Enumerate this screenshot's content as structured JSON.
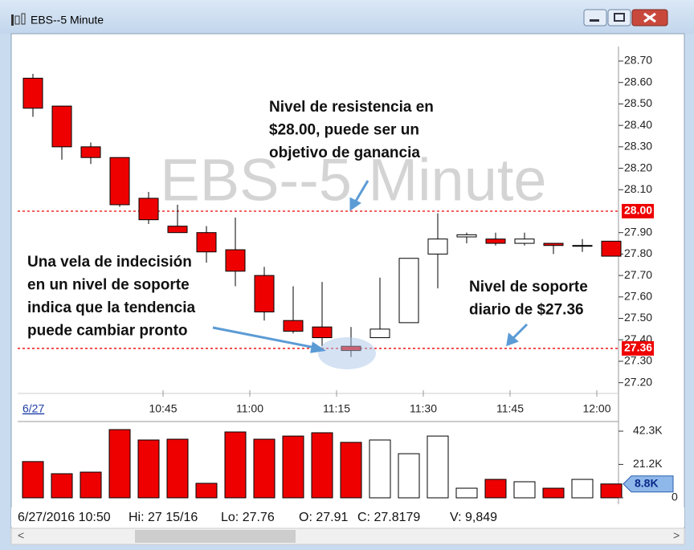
{
  "window": {
    "title": "EBS--5 Minute",
    "status": [
      "6/27/2016 10:50",
      "Hi: 27 15/16",
      "Lo: 27.76",
      "O: 27.91",
      "C: 27.8179",
      "V: 9,849"
    ]
  },
  "chart_data": {
    "type": "candlestick",
    "title": "EBS--5 Minute",
    "date_label": "6/27",
    "xticks": [
      "10:45",
      "11:00",
      "11:15",
      "11:30",
      "11:45",
      "12:00"
    ],
    "open": [
      28.62,
      28.49,
      28.3,
      28.25,
      28.06,
      27.93,
      27.9,
      27.82,
      27.7,
      27.49,
      27.46,
      27.37,
      27.41,
      27.48,
      27.8,
      27.88,
      27.87,
      27.85,
      27.85,
      27.84,
      27.86
    ],
    "high": [
      28.64,
      28.49,
      28.32,
      28.25,
      28.09,
      28.03,
      27.93,
      27.97,
      27.74,
      27.65,
      27.67,
      27.46,
      27.69,
      27.78,
      27.99,
      27.9,
      27.9,
      27.9,
      27.85,
      27.87,
      27.86
    ],
    "low": [
      28.44,
      28.24,
      28.22,
      28.02,
      27.94,
      27.9,
      27.76,
      27.65,
      27.49,
      27.43,
      27.37,
      27.32,
      27.41,
      27.48,
      27.64,
      27.85,
      27.84,
      27.84,
      27.8,
      27.81,
      27.79
    ],
    "close": [
      28.48,
      28.3,
      28.25,
      28.03,
      27.96,
      27.9,
      27.81,
      27.72,
      27.53,
      27.44,
      27.41,
      27.35,
      27.45,
      27.78,
      27.87,
      27.89,
      27.85,
      27.87,
      27.84,
      27.84,
      27.79
    ],
    "up_color": "#ffffff",
    "down_color": "#ee0000",
    "ylim": [
      27.15,
      28.76
    ],
    "yticks": [
      {
        "value": 28.7,
        "label": "28.70"
      },
      {
        "value": 28.6,
        "label": "28.60"
      },
      {
        "value": 28.5,
        "label": "28.50"
      },
      {
        "value": 28.4,
        "label": "28.40"
      },
      {
        "value": 28.3,
        "label": "28.30"
      },
      {
        "value": 28.2,
        "label": "28.20"
      },
      {
        "value": 28.1,
        "label": "28.10"
      },
      {
        "value": 27.9,
        "label": "27.90"
      },
      {
        "value": 27.8,
        "label": "27.80"
      },
      {
        "value": 27.7,
        "label": "27.70"
      },
      {
        "value": 27.6,
        "label": "27.60"
      },
      {
        "value": 27.5,
        "label": "27.50"
      },
      {
        "value": 27.4,
        "label": "27.40"
      },
      {
        "value": 27.3,
        "label": "27.30"
      },
      {
        "value": 27.2,
        "label": "27.20"
      }
    ],
    "levels": [
      {
        "value": 28.0,
        "label": "28.00"
      },
      {
        "value": 27.36,
        "label": "27.36"
      }
    ],
    "level_color": "#ee0000",
    "annotations": [
      {
        "lines": [
          "Nivel de resistencia en",
          "$28.00, puede ser un",
          "objetivo de ganancia"
        ]
      },
      {
        "lines": [
          "Una vela de indecisión",
          "en un nivel de soporte",
          "indica que la tendencia",
          "puede cambiar pronto"
        ]
      },
      {
        "lines": [
          "Nivel de soporte",
          "diario de $27.36"
        ]
      }
    ],
    "volume": {
      "values": [
        23.0,
        15.3,
        16.3,
        43.3,
        36.7,
        37.2,
        9.2,
        41.8,
        37.2,
        39.2,
        41.3,
        35.2,
        36.7,
        28.0,
        39.2,
        6.1,
        11.7,
        10.2,
        6.1,
        11.7,
        8.8
      ],
      "value_labels": [
        null,
        null,
        null,
        null,
        null,
        null,
        null,
        null,
        null,
        null,
        null,
        null,
        null,
        null,
        null,
        null,
        null,
        null,
        null,
        null,
        "8.8K"
      ],
      "ylim": [
        0,
        47.4
      ],
      "yticks": [
        {
          "value": 42.3,
          "label": "42.3K"
        },
        {
          "value": 21.2,
          "label": "21.2K"
        },
        0
      ]
    }
  }
}
